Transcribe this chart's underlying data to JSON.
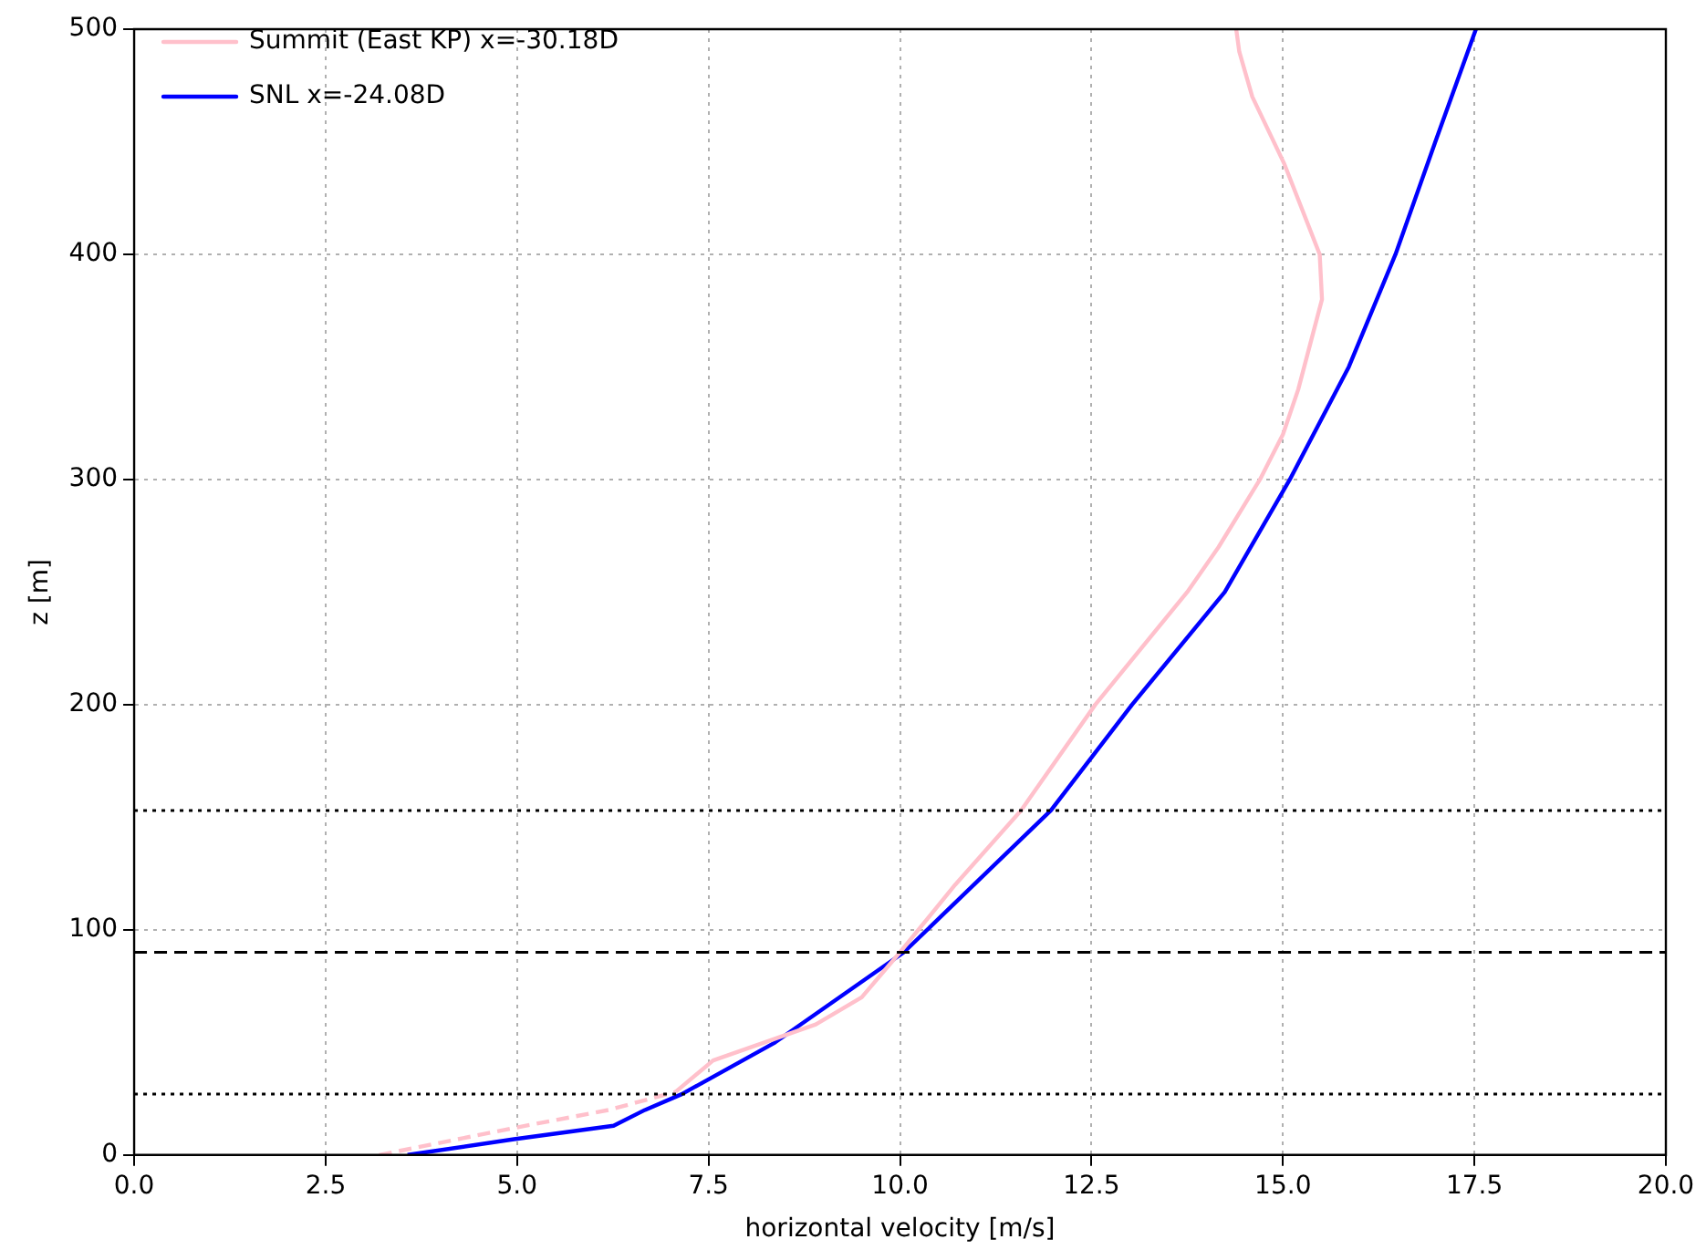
{
  "chart_data": {
    "type": "line",
    "xlabel": "horizontal velocity [m/s]",
    "ylabel": "z [m]",
    "xlim": [
      0,
      20
    ],
    "ylim": [
      0,
      500
    ],
    "xticks": [
      {
        "value": 0,
        "label": "0.0"
      },
      {
        "value": 2.5,
        "label": "2.5"
      },
      {
        "value": 5,
        "label": "5.0"
      },
      {
        "value": 7.5,
        "label": "7.5"
      },
      {
        "value": 10,
        "label": "10.0"
      },
      {
        "value": 12.5,
        "label": "12.5"
      },
      {
        "value": 15,
        "label": "15.0"
      },
      {
        "value": 17.5,
        "label": "17.5"
      },
      {
        "value": 20,
        "label": "20.0"
      }
    ],
    "yticks": [
      0,
      100,
      200,
      300,
      400,
      500
    ],
    "grid": true,
    "legend": "top left",
    "marker": "none",
    "series": [
      {
        "name": "Summit (East KP) x=-30.18D",
        "color": "#ffc0cb",
        "line_style": "solid",
        "x": [
          7.07,
          7.56,
          8.9,
          9.5,
          10.0,
          10.72,
          11.58,
          12.55,
          13.75,
          14.16,
          14.7,
          15.0,
          15.2,
          15.51,
          15.48,
          15.02,
          14.6,
          14.43,
          14.39
        ],
        "values": [
          28,
          42,
          58,
          70,
          90,
          120,
          153,
          200,
          250,
          270,
          300,
          320,
          340,
          380,
          400,
          440,
          470,
          490,
          500
        ]
      },
      {
        "name": "SNL x=-24.08D",
        "color": "#0000ff",
        "line_style": "solid",
        "x": [
          3.57,
          4.96,
          6.26,
          6.67,
          7.15,
          8.37,
          10.05,
          11.97,
          13.03,
          14.24,
          15.09,
          15.86,
          16.47,
          16.99,
          17.52
        ],
        "values": [
          0,
          7,
          13,
          20,
          27,
          50,
          90,
          153,
          200,
          250,
          300,
          350,
          400,
          450,
          500
        ]
      },
      {
        "color": "#ffc0cb",
        "line_style": "dashed",
        "x": [
          3.2,
          4.96,
          6.2,
          7.07
        ],
        "values": [
          0,
          12,
          20,
          28
        ]
      }
    ],
    "ref_lines": [
      {
        "axis": "y",
        "value": 27,
        "line_style": "dotted",
        "color": "#000000"
      },
      {
        "axis": "y",
        "value": 90,
        "line_style": "dashed",
        "color": "#000000"
      },
      {
        "axis": "y",
        "value": 153,
        "line_style": "dotted",
        "color": "#000000"
      }
    ]
  }
}
